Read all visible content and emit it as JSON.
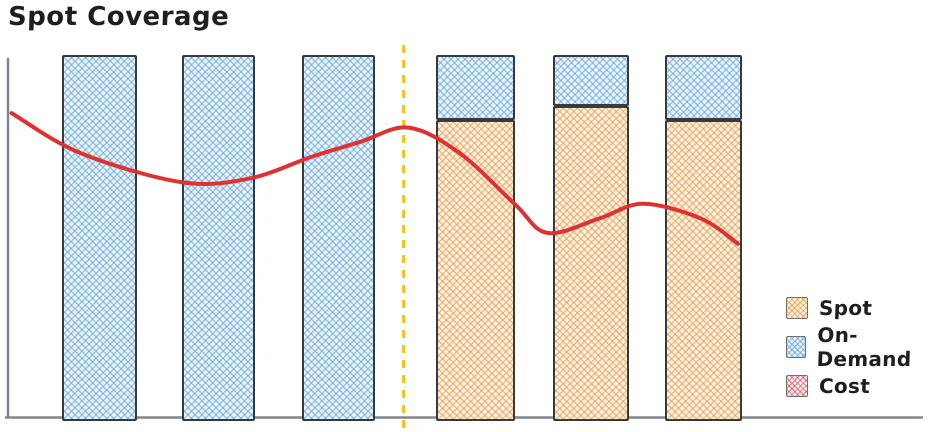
{
  "page": {
    "background": "#ffffff"
  },
  "chart_data": {
    "type": "bar",
    "subtype": "stacked-bar-with-line-overlay",
    "style": "hand-drawn",
    "title": "Spot Coverage",
    "xlabel": "",
    "ylabel": "",
    "ylim": [
      0,
      100
    ],
    "grid": false,
    "categories": [
      "",
      "",
      "",
      "",
      "",
      ""
    ],
    "series": [
      {
        "name": "Spot",
        "values": [
          0,
          0,
          0,
          82,
          86,
          82
        ]
      },
      {
        "name": "On-Demand",
        "values": [
          100,
          100,
          100,
          18,
          14,
          18
        ]
      }
    ],
    "cost_line": {
      "name": "Cost",
      "points": [
        {
          "x": 0.005,
          "v": 84
        },
        {
          "x": 0.08,
          "v": 73
        },
        {
          "x": 0.19,
          "v": 65
        },
        {
          "x": 0.265,
          "v": 66
        },
        {
          "x": 0.333,
          "v": 72
        },
        {
          "x": 0.385,
          "v": 76
        },
        {
          "x": 0.438,
          "v": 80
        },
        {
          "x": 0.494,
          "v": 73
        },
        {
          "x": 0.554,
          "v": 59
        },
        {
          "x": 0.59,
          "v": 51
        },
        {
          "x": 0.647,
          "v": 55
        },
        {
          "x": 0.694,
          "v": 59
        },
        {
          "x": 0.757,
          "v": 55
        },
        {
          "x": 0.798,
          "v": 48
        }
      ]
    },
    "divider": {
      "orientation": "vertical",
      "line_style": "dashed",
      "x": 0.433
    },
    "legend_position": "bottom-right",
    "legend": [
      {
        "label": "Spot",
        "swatch": "#f6c690"
      },
      {
        "label": "On-Demand",
        "swatch": "#b3d7f2"
      },
      {
        "label": "Cost",
        "swatch": "#f0a8ad"
      }
    ],
    "colors": {
      "spot_fill": "#f6c690",
      "on_demand_fill": "#b3d7f2",
      "cost_line": "#e03131",
      "divider": "#f5c211",
      "axis": "#82868c",
      "ink": "#1e1e1e"
    }
  }
}
